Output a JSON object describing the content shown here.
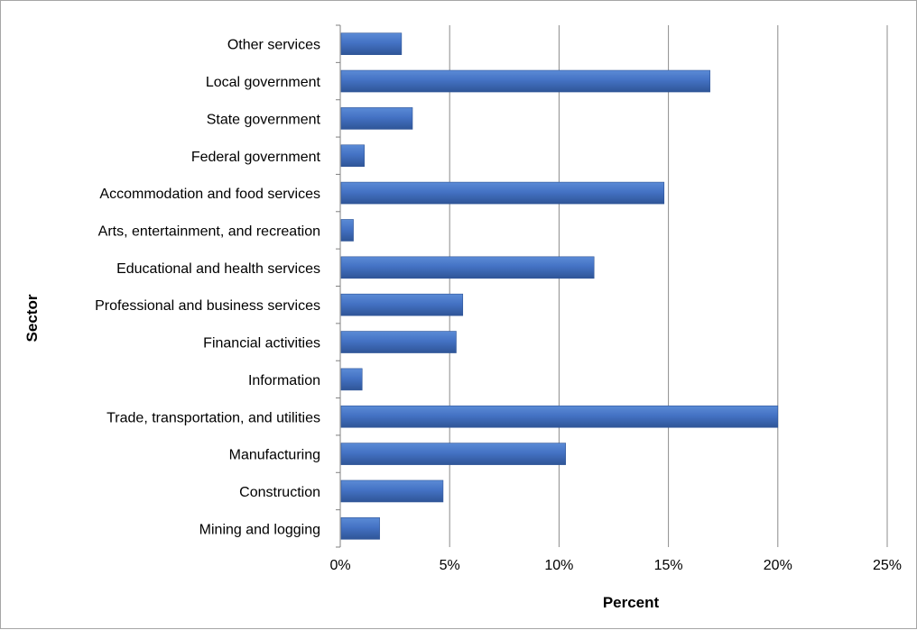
{
  "chart_data": {
    "type": "bar",
    "orientation": "horizontal",
    "categories": [
      "Other services",
      "Local government",
      "State government",
      "Federal government",
      "Accommodation and food services",
      "Arts, entertainment, and recreation",
      "Educational and health services",
      "Professional and business services",
      "Financial activities",
      "Information",
      "Trade, transportation, and utilities",
      "Manufacturing",
      "Construction",
      "Mining and logging"
    ],
    "values": [
      2.8,
      16.9,
      3.3,
      1.1,
      14.8,
      0.6,
      11.6,
      5.6,
      5.3,
      1.0,
      20.0,
      10.3,
      4.7,
      1.8
    ],
    "title": "",
    "xlabel": "Percent",
    "ylabel": "Sector",
    "xlim": [
      0,
      25
    ],
    "xticks": [
      0,
      5,
      10,
      15,
      20,
      25
    ],
    "xtick_labels": [
      "0%",
      "5%",
      "10%",
      "15%",
      "20%",
      "25%"
    ],
    "grid": "vertical",
    "legend": "none",
    "colors": {
      "bar": "#4472c4",
      "bar_dark": "#2f5597",
      "grid": "#8c8c8c",
      "axis": "#808080"
    }
  }
}
